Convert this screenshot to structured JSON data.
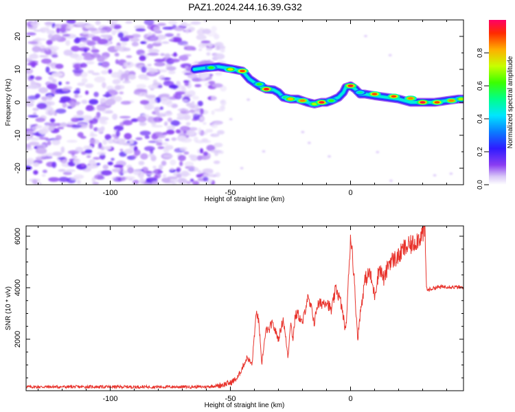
{
  "title": "PAZ1.2024.244.16.39.G32",
  "colors": {
    "snr_line": "#e8322b",
    "axis": "#000000",
    "background": "#ffffff"
  },
  "chart_data": [
    {
      "type": "heatmap",
      "xlabel": "Height of straight line (km)",
      "ylabel": "Frequency (Hz)",
      "xlim": [
        -135,
        47
      ],
      "ylim": [
        -25,
        25
      ],
      "x_ticks": [
        -100,
        -50,
        0
      ],
      "y_ticks": [
        -20,
        -10,
        0,
        10,
        20
      ],
      "colorbar": {
        "label": "Normalized spectral amplitude",
        "range": [
          0,
          1
        ],
        "ticks": [
          "0.0",
          "0.2",
          "0.4",
          "0.6",
          "0.8"
        ],
        "colormap": "gist_rainbow_r with faded low end"
      },
      "noise_region_x": [
        -135,
        -55
      ],
      "ridge": {
        "x": [
          -65,
          -60,
          -55,
          -50,
          -45,
          -42,
          -38,
          -35,
          -32,
          -30,
          -28,
          -25,
          -22,
          -20,
          -18,
          -15,
          -12,
          -10,
          -8,
          -5,
          -3,
          -2,
          0,
          2,
          4,
          6,
          10,
          15,
          20,
          25,
          30,
          35,
          40,
          45,
          47
        ],
        "y": [
          10,
          10.5,
          10.8,
          10.2,
          9.5,
          7,
          5,
          4,
          3.8,
          3,
          1.5,
          1,
          1,
          0.5,
          0,
          -0.5,
          0,
          0,
          0.5,
          1.5,
          3,
          4.5,
          5,
          4,
          2.5,
          2.5,
          2,
          1.5,
          1,
          0,
          0,
          0,
          0.5,
          1,
          1
        ],
        "blobs": [
          {
            "x": -58,
            "y": 10.5,
            "a": 0.6
          },
          {
            "x": -50,
            "y": 10,
            "a": 0.75
          },
          {
            "x": -45,
            "y": 9.5,
            "a": 0.9
          },
          {
            "x": -38,
            "y": 5.5,
            "a": 0.6
          },
          {
            "x": -35,
            "y": 4,
            "a": 0.95
          },
          {
            "x": -27,
            "y": 1.5,
            "a": 0.55
          },
          {
            "x": -25,
            "y": 1,
            "a": 0.8
          },
          {
            "x": -20,
            "y": 0.5,
            "a": 0.85
          },
          {
            "x": -15,
            "y": -0.5,
            "a": 0.7
          },
          {
            "x": -12,
            "y": 0,
            "a": 0.95
          },
          {
            "x": -8,
            "y": 0.5,
            "a": 0.6
          },
          {
            "x": 0,
            "y": 5,
            "a": 0.95
          },
          {
            "x": 4,
            "y": 3,
            "a": 0.5
          },
          {
            "x": 10,
            "y": 2.5,
            "a": 0.9
          },
          {
            "x": 18,
            "y": 1.8,
            "a": 0.9
          },
          {
            "x": 25,
            "y": 1.2,
            "a": 0.85
          },
          {
            "x": 30,
            "y": 0,
            "a": 0.97
          },
          {
            "x": 36,
            "y": 0,
            "a": 0.9
          },
          {
            "x": 42,
            "y": 0.5,
            "a": 0.85
          },
          {
            "x": 46,
            "y": 1,
            "a": 0.7
          }
        ]
      }
    },
    {
      "type": "line",
      "xlabel": "Height of straight line (km)",
      "ylabel": "SNR (10 * v/v)",
      "xlim": [
        -135,
        47
      ],
      "ylim": [
        0,
        6400
      ],
      "x_ticks": [
        -100,
        -50,
        0
      ],
      "y_ticks": [
        2000,
        4000,
        6000
      ],
      "series": [
        {
          "x": [
            -135,
            -60,
            -55,
            -50,
            -47,
            -45,
            -43,
            -41,
            -40,
            -39,
            -38,
            -37,
            -36,
            -35,
            -34,
            -33,
            -32,
            -30,
            -28,
            -26,
            -25,
            -24,
            -23,
            -22,
            -20,
            -18,
            -16,
            -15,
            -14,
            -12,
            -10,
            -8,
            -6,
            -4,
            -2,
            -1,
            0,
            1,
            2,
            3,
            4,
            6,
            8,
            10,
            12,
            14,
            16,
            18,
            20,
            22,
            24,
            26,
            28,
            30,
            31,
            31.5,
            32,
            35,
            40,
            47
          ],
          "y": [
            150,
            150,
            200,
            300,
            500,
            900,
            1300,
            1000,
            2200,
            3100,
            2500,
            1000,
            1800,
            2400,
            2300,
            2600,
            2500,
            2000,
            2800,
            1300,
            2700,
            2000,
            2900,
            3000,
            2600,
            3600,
            3100,
            2600,
            3300,
            3400,
            3500,
            3100,
            4000,
            3400,
            2300,
            4000,
            6100,
            5100,
            3500,
            2000,
            3000,
            4300,
            4600,
            3700,
            4800,
            4300,
            5000,
            5100,
            5200,
            5500,
            5600,
            5700,
            5900,
            6100,
            6200,
            4100,
            3900,
            4000,
            4050,
            4000
          ]
        }
      ]
    }
  ]
}
